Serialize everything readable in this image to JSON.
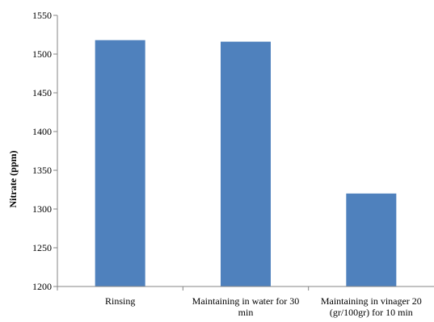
{
  "chart_data": {
    "type": "bar",
    "title": "",
    "xlabel": "",
    "ylabel": "Nitrate (ppm)",
    "ylim": [
      1200,
      1550
    ],
    "yticks": [
      1200,
      1250,
      1300,
      1350,
      1400,
      1450,
      1500,
      1550
    ],
    "grid": false,
    "legend": "none",
    "categories": [
      [
        "Rinsing"
      ],
      [
        "Maintaining in water for 30",
        "min"
      ],
      [
        "Maintaining in vinager 20",
        "(gr/100gr) for 10 min"
      ]
    ],
    "values": [
      1518,
      1516,
      1320
    ],
    "bar_color": "#4F81BD"
  }
}
